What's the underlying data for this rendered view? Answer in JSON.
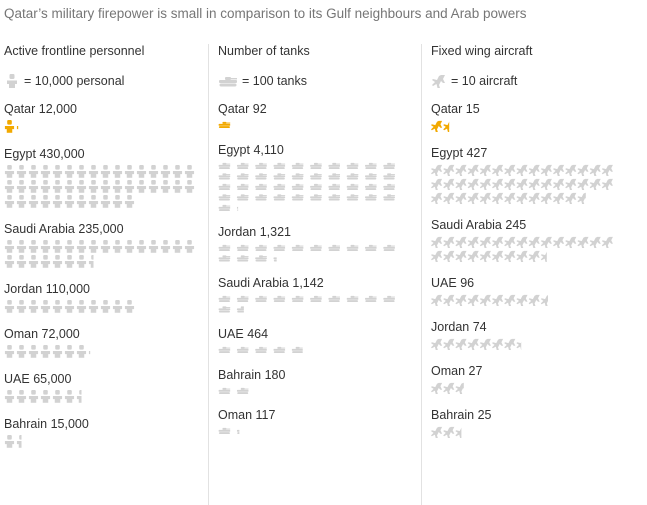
{
  "title": "Qatar’s military firepower is small in comparison to its Gulf neighbours and Arab powers",
  "colors": {
    "highlight": "#f2a900",
    "neutral": "#d2d2d2",
    "text": "#333333",
    "title": "#767676"
  },
  "chart_data": [
    {
      "type": "pictogram",
      "header": "Active frontline personnel",
      "legend": "= 10,000 personal",
      "icon": "soldier-icon",
      "unit_value": 10000,
      "entries": [
        {
          "country": "Qatar",
          "value_label": "12,000",
          "value": 12000,
          "highlight": true
        },
        {
          "country": "Egypt",
          "value_label": "430,000",
          "value": 430000
        },
        {
          "country": "Saudi Arabia",
          "value_label": "235,000",
          "value": 235000
        },
        {
          "country": "Jordan",
          "value_label": "110,000",
          "value": 110000
        },
        {
          "country": "Oman",
          "value_label": "72,000",
          "value": 72000
        },
        {
          "country": "UAE",
          "value_label": "65,000",
          "value": 65000
        },
        {
          "country": "Bahrain",
          "value_label": "15,000",
          "value": 15000
        }
      ]
    },
    {
      "type": "pictogram",
      "header": "Number of tanks",
      "legend": "= 100 tanks",
      "icon": "tank-icon",
      "unit_value": 100,
      "entries": [
        {
          "country": "Qatar",
          "value_label": "92",
          "value": 92,
          "highlight": true
        },
        {
          "country": "Egypt",
          "value_label": "4,110",
          "value": 4110
        },
        {
          "country": "Jordan",
          "value_label": "1,321",
          "value": 1321
        },
        {
          "country": "Saudi Arabia",
          "value_label": "1,142",
          "value": 1142
        },
        {
          "country": "UAE",
          "value_label": "464",
          "value": 464
        },
        {
          "country": "Bahrain",
          "value_label": "180",
          "value": 180
        },
        {
          "country": "Oman",
          "value_label": "117",
          "value": 117
        }
      ]
    },
    {
      "type": "pictogram",
      "header": "Fixed wing aircraft",
      "legend": "= 10 aircraft",
      "icon": "jet-icon",
      "unit_value": 10,
      "entries": [
        {
          "country": "Qatar",
          "value_label": "15",
          "value": 15,
          "highlight": true
        },
        {
          "country": "Egypt",
          "value_label": "427",
          "value": 427
        },
        {
          "country": "Saudi Arabia",
          "value_label": "245",
          "value": 245
        },
        {
          "country": "UAE",
          "value_label": "96",
          "value": 96
        },
        {
          "country": "Jordan",
          "value_label": "74",
          "value": 74
        },
        {
          "country": "Oman",
          "value_label": "27",
          "value": 27
        },
        {
          "country": "Bahrain",
          "value_label": "25",
          "value": 25
        }
      ]
    }
  ]
}
